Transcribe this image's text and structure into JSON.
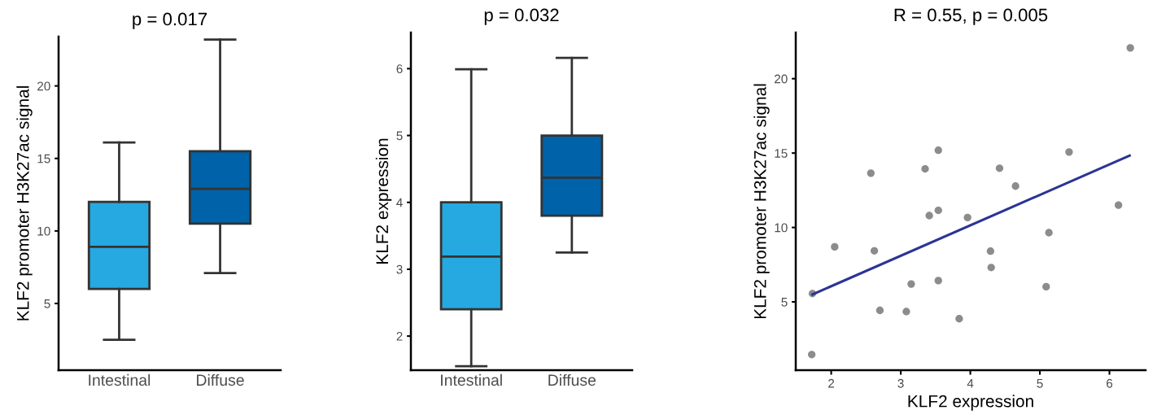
{
  "chart_data": [
    {
      "type": "box",
      "title": "p = 0.017",
      "ylabel": "KLF2 promoter H3K27ac signal",
      "categories": [
        "Intestinal",
        "Diffuse"
      ],
      "colors": [
        "#25a9e0",
        "#0062a8"
      ],
      "boxes": [
        {
          "low": 2.5,
          "q1": 6,
          "median": 8.9,
          "q3": 12,
          "high": 16.1
        },
        {
          "low": 7.1,
          "q1": 10.5,
          "median": 12.9,
          "q3": 15.5,
          "high": 23.2
        }
      ],
      "ylim": [
        0.4,
        23.4
      ],
      "yticks": [
        5,
        10,
        15,
        20
      ],
      "grid": false
    },
    {
      "type": "box",
      "title": "p = 0.032",
      "ylabel": "KLF2 expression",
      "categories": [
        "Intestinal",
        "Diffuse"
      ],
      "colors": [
        "#25a9e0",
        "#0062a8"
      ],
      "boxes": [
        {
          "low": 1.55,
          "q1": 2.4,
          "median": 3.19,
          "q3": 4.0,
          "high": 5.99
        },
        {
          "low": 3.25,
          "q1": 3.8,
          "median": 4.37,
          "q3": 5.0,
          "high": 6.16
        }
      ],
      "ylim": [
        1.49,
        6.54
      ],
      "yticks": [
        2,
        3,
        4,
        5,
        6
      ],
      "grid": false
    },
    {
      "type": "scatter",
      "title": "R = 0.55, p = 0.005",
      "xlabel": "KLF2 expression",
      "ylabel": "KLF2 promoter H3K27ac signal",
      "series": [
        {
          "type": "scatter",
          "marker": "circle",
          "color": "#8c8c8c",
          "x": [
            1.72,
            1.73,
            2.05,
            2.57,
            2.62,
            2.7,
            3.08,
            3.15,
            3.35,
            3.41,
            3.54,
            3.54,
            3.54,
            3.84,
            3.96,
            4.29,
            4.3,
            4.42,
            4.65,
            5.09,
            5.13,
            5.42,
            6.13,
            6.3
          ],
          "values": [
            1.46,
            5.56,
            8.7,
            13.65,
            8.43,
            4.43,
            4.35,
            6.2,
            13.94,
            10.8,
            15.19,
            11.15,
            6.43,
            3.87,
            10.67,
            8.41,
            7.31,
            13.98,
            12.78,
            6.02,
            9.65,
            15.07,
            11.5,
            22.07
          ]
        },
        {
          "type": "line",
          "color": "#2b3494",
          "x": [
            1.73,
            6.29
          ],
          "values": [
            5.5,
            14.83
          ]
        }
      ],
      "xlim": [
        1.49,
        6.52
      ],
      "xticks": [
        2,
        3,
        4,
        5,
        6
      ],
      "ylim": [
        0.41,
        23.1
      ],
      "yticks": [
        5,
        10,
        15,
        20
      ],
      "grid": false
    }
  ]
}
